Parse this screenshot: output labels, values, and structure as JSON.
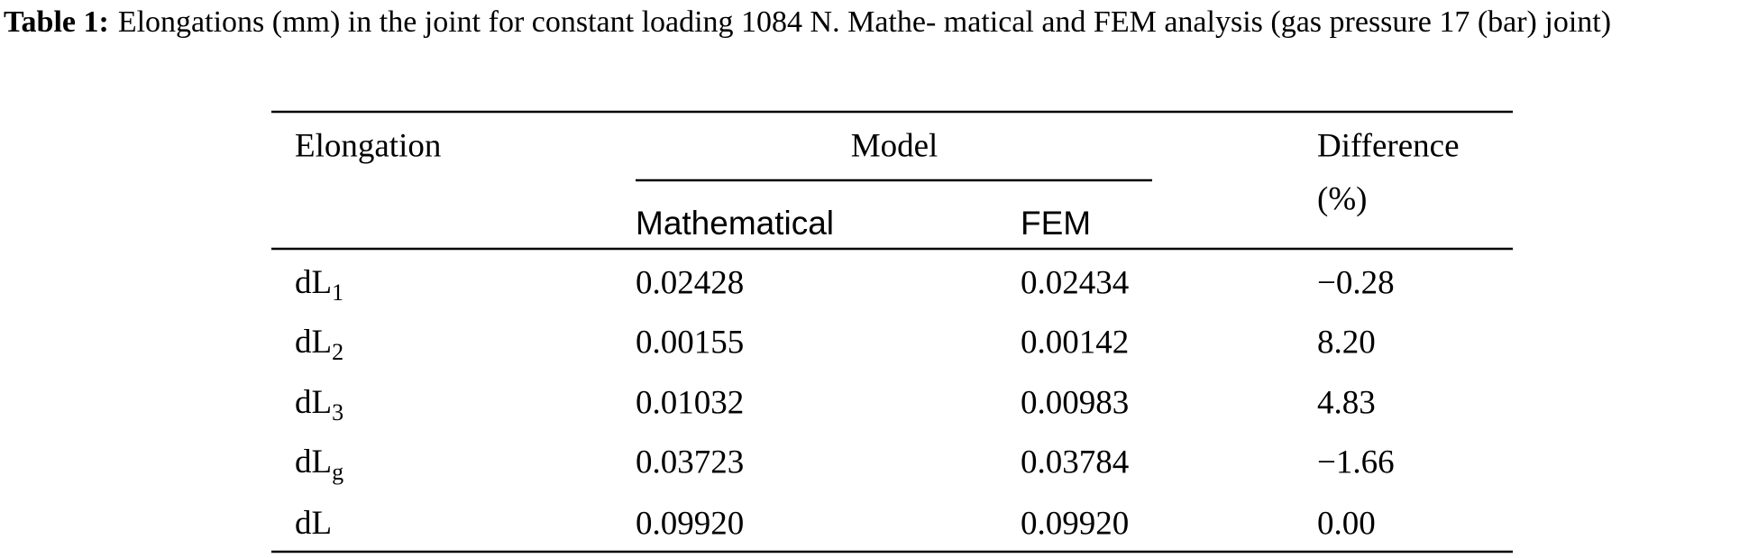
{
  "caption": {
    "label": "Table 1:",
    "text": "Elongations (mm) in the joint for constant loading 1084 N. Mathe- matical and FEM analysis (gas pressure 17 (bar) joint)"
  },
  "table": {
    "headers": {
      "elongation": "Elongation",
      "model": "Model",
      "mathematical": "Mathematical",
      "fem": "FEM",
      "difference": [
        "Difference",
        "(%)"
      ]
    },
    "rows": [
      {
        "name": "dL",
        "sub": "1",
        "cells": [
          "0.02428",
          "0.02434",
          "−0.28"
        ]
      },
      {
        "name": "dL",
        "sub": "2",
        "cells": [
          "0.00155",
          "0.00142",
          "8.20"
        ]
      },
      {
        "name": "dL",
        "sub": "3",
        "cells": [
          "0.01032",
          "0.00983",
          "4.83"
        ]
      },
      {
        "name": "dL",
        "sub": "g",
        "cells": [
          "0.03723",
          "0.03784",
          "−1.66"
        ]
      },
      {
        "name": "dL",
        "cells": [
          "0.09920",
          "0.09920",
          "0.00"
        ]
      }
    ]
  }
}
